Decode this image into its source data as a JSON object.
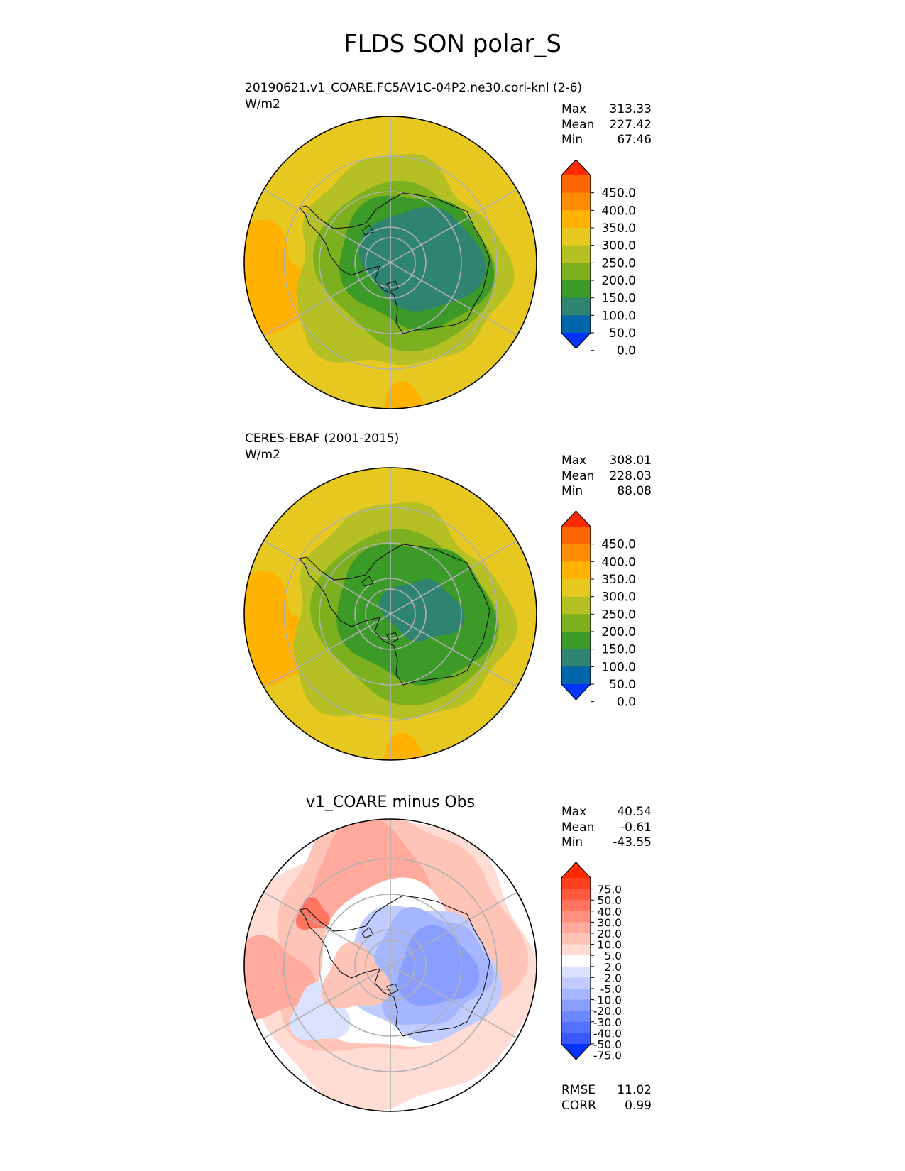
{
  "figure_title": "FLDS SON polar_S",
  "panels": [
    {
      "subtitle": "20190621.v1_COARE.FC5AV1C-04P2.ne30.cori-knl (2-6)",
      "units": "W/m2",
      "stats": {
        "max_label": "Max",
        "max": "313.33",
        "mean_label": "Mean",
        "mean": "227.42",
        "min_label": "Min",
        "min": "67.46"
      }
    },
    {
      "subtitle": "CERES-EBAF (2001-2015)",
      "units": "W/m2",
      "stats": {
        "max_label": "Max",
        "max": "308.01",
        "mean_label": "Mean",
        "mean": "228.03",
        "min_label": "Min",
        "min": "88.08"
      }
    },
    {
      "title": "v1_COARE minus Obs",
      "stats": {
        "max_label": "Max",
        "max": "40.54",
        "mean_label": "Mean",
        "mean": "-0.61",
        "min_label": "Min",
        "min": "-43.55"
      },
      "metrics": {
        "rmse_label": "RMSE",
        "rmse": "11.02",
        "corr_label": "CORR",
        "corr": "0.99"
      }
    }
  ],
  "colorbars": {
    "field": {
      "ticks": [
        "450.0",
        "400.0",
        "350.0",
        "300.0",
        "250.0",
        "200.0",
        "150.0",
        "100.0",
        "50.0",
        "0.0"
      ],
      "colors": [
        "#ff2a00",
        "#ff6600",
        "#ff8c00",
        "#ffb300",
        "#e6c820",
        "#b4c023",
        "#7db01e",
        "#3c9a28",
        "#2e8471",
        "#0066a8",
        "#0033ff"
      ]
    },
    "diff": {
      "ticks": [
        "75.0",
        "50.0",
        "40.0",
        "30.0",
        "20.0",
        "10.0",
        "5.0",
        "2.0",
        "-2.0",
        "-5.0",
        "-10.0",
        "-20.0",
        "-30.0",
        "-40.0",
        "-50.0",
        "-75.0"
      ],
      "colors": [
        "#ff2a00",
        "#ff4020",
        "#ff5a40",
        "#ff7560",
        "#ff9180",
        "#ffaa9c",
        "#ffc4b8",
        "#ffdcd4",
        "#ffffff",
        "#dae2ff",
        "#c0ccff",
        "#a5b5ff",
        "#8a9eff",
        "#6f87ff",
        "#5470ff",
        "#3959ff",
        "#0033ff"
      ]
    }
  },
  "chart_data": [
    {
      "type": "heatmap",
      "projection": "south polar stereographic",
      "title": "20190621.v1_COARE.FC5AV1C-04P2.ne30.cori-knl (2-6)",
      "units": "W/m2",
      "levels": [
        0,
        50,
        100,
        150,
        200,
        250,
        300,
        350,
        400,
        450
      ],
      "extend": "both",
      "approx_field": {
        "pole_interior_band": "50-100",
        "antarctic_coast_band": "100-200",
        "sea_ice_zone": "200-250",
        "open_ocean": "250-300",
        "outer_edge_northwest": "300-350"
      },
      "summary": {
        "max": 313.33,
        "mean": 227.42,
        "min": 67.46
      }
    },
    {
      "type": "heatmap",
      "projection": "south polar stereographic",
      "title": "CERES-EBAF (2001-2015)",
      "units": "W/m2",
      "levels": [
        0,
        50,
        100,
        150,
        200,
        250,
        300,
        350,
        400,
        450
      ],
      "extend": "both",
      "approx_field": {
        "pole_interior_band": "50-100",
        "antarctic_coast_band": "100-200",
        "sea_ice_zone": "200-250",
        "open_ocean": "250-300",
        "outer_edge_northwest": "300-350"
      },
      "summary": {
        "max": 308.01,
        "mean": 228.03,
        "min": 88.08
      }
    },
    {
      "type": "heatmap",
      "projection": "south polar stereographic",
      "title": "v1_COARE minus Obs",
      "levels": [
        -75,
        -50,
        -40,
        -30,
        -20,
        -10,
        -5,
        -2,
        2,
        5,
        10,
        20,
        30,
        40,
        50,
        75
      ],
      "extend": "both",
      "approx_field": {
        "east_antarctica": "-20 to -30",
        "west_antarctica_and_peninsula": "+10 to +30",
        "southern_ocean": "-5 to +20"
      },
      "summary": {
        "max": 40.54,
        "mean": -0.61,
        "min": -43.55,
        "rmse": 11.02,
        "corr": 0.99
      }
    }
  ]
}
